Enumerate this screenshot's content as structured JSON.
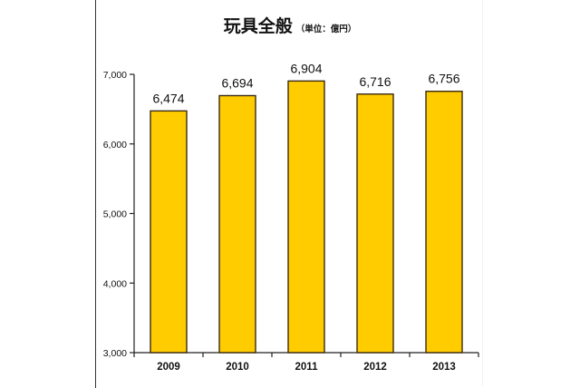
{
  "title": {
    "main": "玩具全般",
    "unit": "（単位：億円）"
  },
  "colors": {
    "bar_fill": "#FFCC00",
    "bar_stroke": "#3a2a10",
    "axis": "#222222",
    "text": "#111111"
  },
  "chart_data": {
    "type": "bar",
    "title": "玩具全般（単位：億円）",
    "xlabel": "",
    "ylabel": "",
    "categories": [
      "2009",
      "2010",
      "2011",
      "2012",
      "2013"
    ],
    "values": [
      6474,
      6694,
      6904,
      6716,
      6756
    ],
    "value_labels": [
      "6,474",
      "6,694",
      "6,904",
      "6,716",
      "6,756"
    ],
    "ylim": [
      3000,
      7000
    ],
    "yticks": [
      3000,
      4000,
      5000,
      6000,
      7000
    ],
    "ytick_labels": [
      "3,000",
      "4,000",
      "5,000",
      "6,000",
      "7,000"
    ],
    "grid": false,
    "legend": "none"
  }
}
